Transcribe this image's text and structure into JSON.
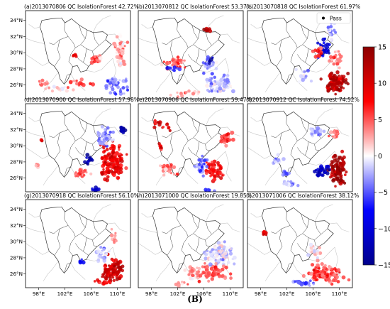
{
  "figure_caption": "(B)",
  "chart_data": {
    "type": "scatter",
    "grid": false,
    "x_ticks": [
      "98°E",
      "102°E",
      "106°E",
      "110°E"
    ],
    "y_ticks": [
      "26°N",
      "28°N",
      "30°N",
      "32°N",
      "34°N"
    ],
    "xlim": [
      96,
      112
    ],
    "ylim": [
      24.3,
      35.2
    ],
    "colorbar": {
      "min": -15,
      "max": 15,
      "ticks": [
        15,
        10,
        5,
        0,
        -5,
        -10,
        -15
      ],
      "colormap": "seismic",
      "low_color": "#00008c",
      "mid_color": "#ffffff",
      "high_color": "#8c0000"
    },
    "legend": {
      "label": "Pass",
      "placement": "top-right",
      "panel": 2
    },
    "panels": [
      {
        "title": "(a)2013070806 QC IsolationForest 42.72%",
        "pass_percent": 42.72,
        "clusters": [
          [
            106.5,
            29.2,
            1.2,
            0.8,
            5,
            20
          ],
          [
            110.5,
            30.5,
            1.2,
            2.8,
            3,
            40
          ],
          [
            109.5,
            26,
            2.5,
            1.4,
            -4,
            50
          ],
          [
            104,
            26.2,
            2.5,
            0.6,
            6,
            12
          ],
          [
            101,
            25.6,
            3,
            0.6,
            2,
            12
          ],
          [
            98.5,
            26.2,
            1.2,
            0.5,
            4,
            8
          ],
          [
            103.5,
            29.7,
            0.6,
            0.4,
            9,
            6
          ]
        ]
      },
      {
        "title": "(b)2013070812 QC IsolationForest 53.37%",
        "pass_percent": 53.37,
        "clusters": [
          [
            108.5,
            26.2,
            3,
            2,
            -2,
            70
          ],
          [
            101.5,
            28.7,
            2.5,
            0.9,
            5,
            30
          ],
          [
            101.5,
            28,
            1.6,
            0.6,
            -5,
            10
          ],
          [
            107,
            28.5,
            1.8,
            1.5,
            -3,
            25
          ],
          [
            106.5,
            32.8,
            0.6,
            0.4,
            13,
            8
          ],
          [
            103.5,
            25,
            3,
            0.6,
            3,
            15
          ],
          [
            107,
            29,
            0.6,
            0.6,
            -12,
            5
          ]
        ]
      },
      {
        "title": "(c)2013070818 QC IsolationForest 61.97%",
        "pass_percent": 61.97,
        "clusters": [
          [
            109.5,
            26.3,
            2.5,
            1.8,
            12,
            100
          ],
          [
            107.5,
            30.5,
            1.5,
            1.5,
            -10,
            30
          ],
          [
            106.8,
            30,
            1,
            1,
            6,
            15
          ],
          [
            109.5,
            29.2,
            2,
            1.2,
            4,
            25
          ],
          [
            104.5,
            27.2,
            1.5,
            1.2,
            -1,
            12
          ],
          [
            109,
            32.5,
            1.3,
            1.6,
            -2,
            15
          ]
        ]
      },
      {
        "title": "(d)2013070900 QC IsolationForest 57.98%",
        "pass_percent": 57.98,
        "clusters": [
          [
            109.2,
            28,
            2.7,
            3.2,
            9,
            140
          ],
          [
            108.2,
            31,
            2,
            1.6,
            -3,
            40
          ],
          [
            110.8,
            32,
            0.6,
            0.6,
            -15,
            15
          ],
          [
            105.8,
            28.3,
            1,
            1,
            -13,
            15
          ],
          [
            104.5,
            26.5,
            1.6,
            1,
            5,
            20
          ],
          [
            97.8,
            27.5,
            0.5,
            0.5,
            2,
            6
          ],
          [
            98.5,
            30.7,
            0.2,
            0.2,
            11,
            2
          ],
          [
            106.5,
            24.6,
            1.5,
            0.3,
            -11,
            8
          ]
        ]
      },
      {
        "title": "(e)2013070906 QC IsolationForest 59.47%",
        "pass_percent": 59.47,
        "clusters": [
          [
            107.5,
            27,
            2,
            1.6,
            8,
            60
          ],
          [
            105.5,
            27.5,
            1.6,
            1.6,
            -4,
            30
          ],
          [
            100.5,
            27.2,
            2,
            1.2,
            4,
            25
          ],
          [
            99.5,
            32.5,
            1.5,
            1,
            10,
            15
          ],
          [
            109.5,
            31,
            1.3,
            1.5,
            6,
            20
          ],
          [
            99.3,
            29.8,
            0.6,
            0.6,
            9,
            8
          ],
          [
            106.5,
            24.5,
            1.5,
            0.3,
            -6,
            8
          ]
        ]
      },
      {
        "title": "(f)2013070912 QC IsolationForest 74.52%",
        "pass_percent": 74.52,
        "clusters": [
          [
            109.8,
            27,
            1.6,
            2.6,
            13,
            100
          ],
          [
            107.2,
            27,
            1.5,
            1,
            -12,
            30
          ],
          [
            106.5,
            31.8,
            1.6,
            0.8,
            -2,
            25
          ],
          [
            100.5,
            28.3,
            1.5,
            0.8,
            -3,
            15
          ],
          [
            102.5,
            25.3,
            2,
            0.6,
            -2,
            15
          ],
          [
            109.5,
            31.5,
            1.3,
            1,
            4,
            15
          ],
          [
            101.8,
            26.6,
            1.4,
            0.5,
            -5,
            10
          ]
        ]
      },
      {
        "title": "(g)2013070918 QC IsolationForest 56.10%",
        "pass_percent": 56.1,
        "clusters": [
          [
            109.3,
            26.5,
            2.5,
            2,
            11,
            90
          ],
          [
            107.8,
            28.5,
            1.5,
            1.5,
            -2,
            25
          ],
          [
            104.5,
            27.5,
            0.6,
            0.6,
            -7,
            6
          ],
          [
            109.5,
            30.5,
            1,
            1.5,
            4,
            12
          ],
          [
            107.5,
            25,
            2,
            0.5,
            8,
            15
          ]
        ]
      },
      {
        "title": "(h)2013071000 QC IsolationForest 19.85%",
        "pass_percent": 19.85,
        "clusters": [
          [
            108.5,
            28.5,
            3,
            1.8,
            -1,
            100
          ],
          [
            107.5,
            26.2,
            3.5,
            1.6,
            5,
            60
          ],
          [
            104.5,
            26,
            2,
            1.5,
            2,
            30
          ],
          [
            102.5,
            24.8,
            1.5,
            0.4,
            3,
            8
          ]
        ]
      },
      {
        "title": "(i)2013071006 QC IsolationForest 38.12%",
        "pass_percent": 38.12,
        "clusters": [
          [
            108,
            26,
            3.8,
            1.6,
            6,
            90
          ],
          [
            104.5,
            24.9,
            2,
            0.5,
            -5,
            20
          ],
          [
            98.5,
            31,
            0.6,
            0.4,
            9,
            8
          ],
          [
            106.5,
            28.7,
            1.5,
            1.2,
            1,
            20
          ]
        ]
      }
    ]
  }
}
